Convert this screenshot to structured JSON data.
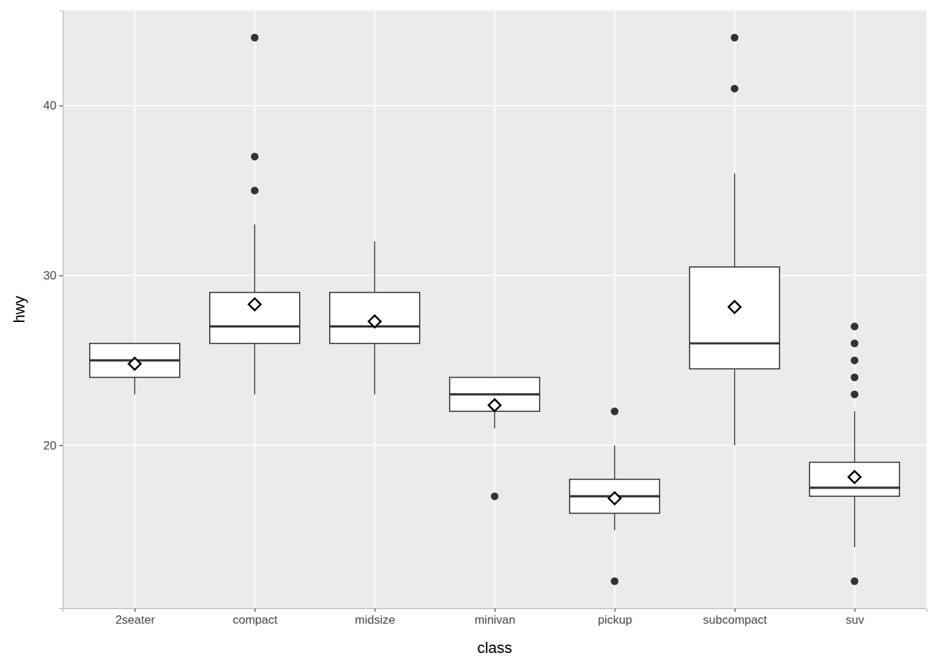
{
  "chart_data": {
    "type": "boxplot",
    "x_label": "class",
    "y_label": "hwy",
    "categories": [
      "2seater",
      "compact",
      "midsize",
      "minivan",
      "pickup",
      "subcompact",
      "suv"
    ],
    "whisker_low": [
      23,
      23,
      23,
      21,
      15,
      20,
      14
    ],
    "q1": [
      24,
      26,
      26,
      22,
      16,
      24.5,
      17
    ],
    "median": [
      25,
      27,
      27,
      23,
      17,
      26,
      17.5
    ],
    "q3": [
      26,
      29,
      29,
      24,
      18,
      30.5,
      19
    ],
    "whisker_high": [
      26,
      33,
      32,
      24,
      20,
      36,
      22
    ],
    "mean": [
      24.8,
      28.3,
      27.29,
      22.36,
      16.88,
      28.14,
      18.13
    ],
    "outliers": [
      [],
      [
        35,
        37,
        44
      ],
      [],
      [
        17
      ],
      [
        12,
        22
      ],
      [
        41,
        44
      ],
      [
        12,
        23,
        24,
        25,
        26,
        27
      ]
    ],
    "ylim": [
      10.4,
      45.6
    ],
    "yticks": [
      20,
      30,
      40
    ],
    "grid": true
  }
}
